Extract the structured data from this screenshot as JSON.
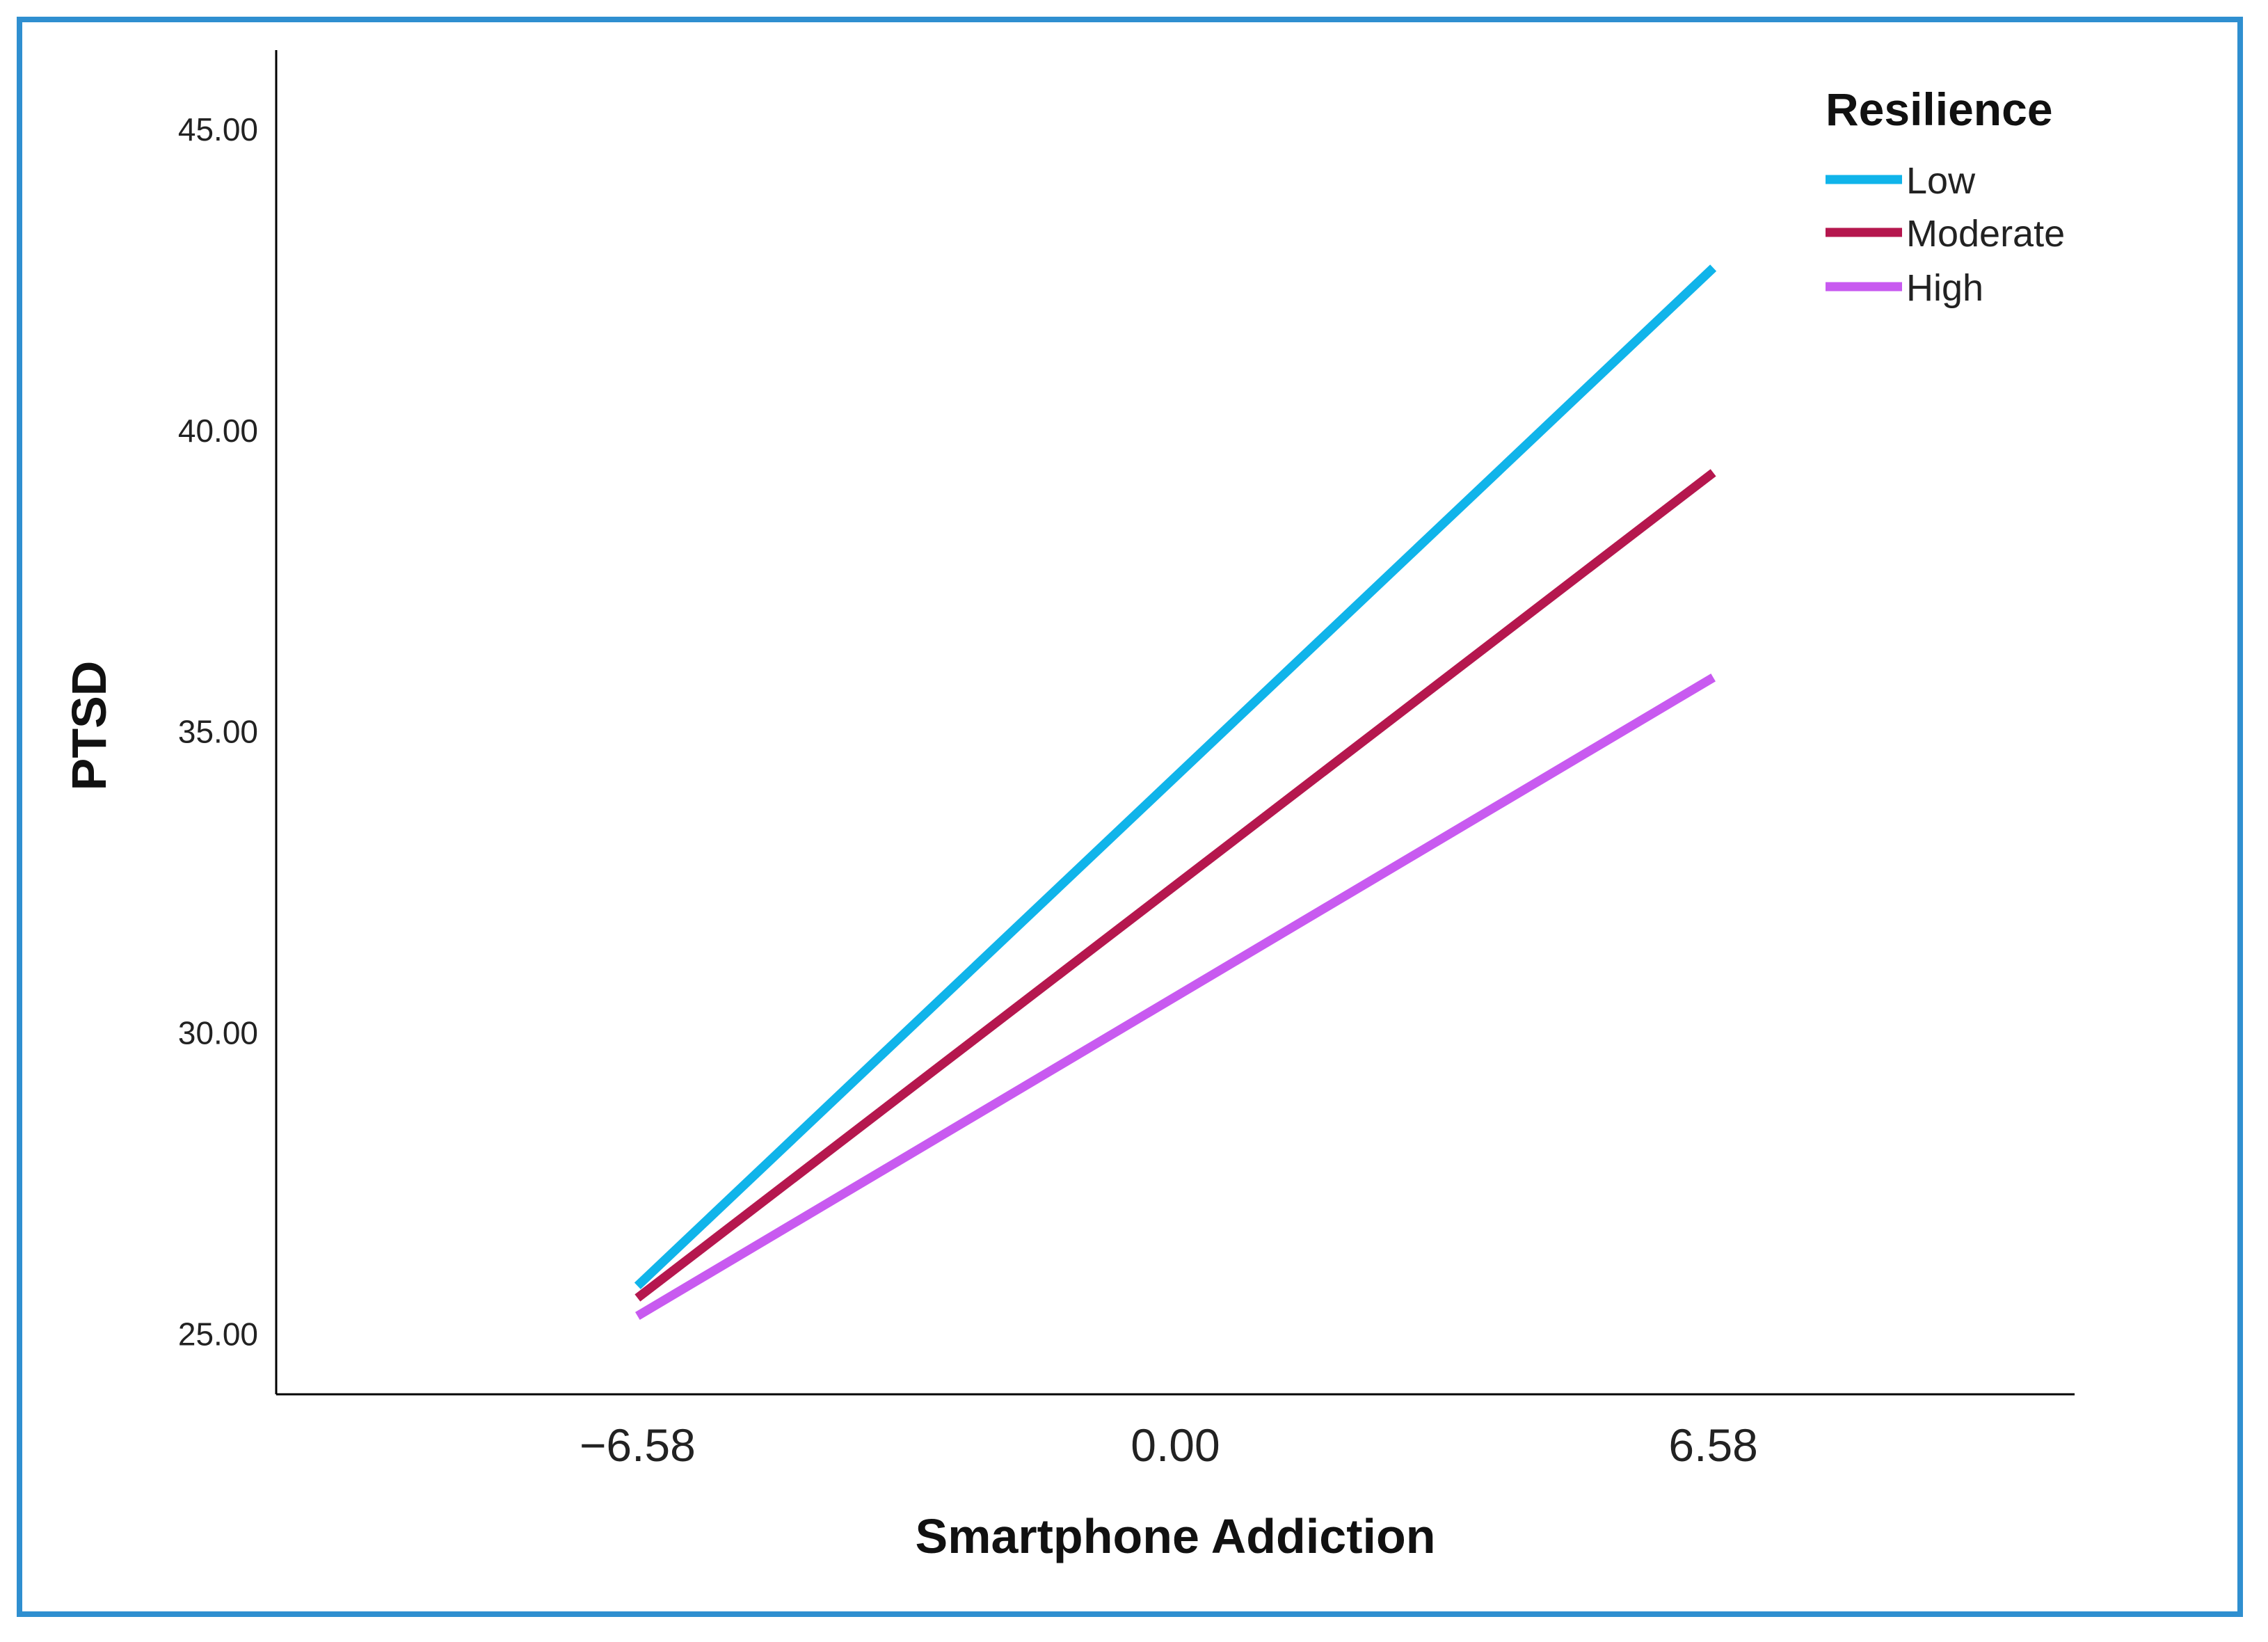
{
  "chart_data": {
    "type": "line",
    "xlabel": "Smartphone Addiction",
    "ylabel": "PTSD",
    "x_ticks": [
      "−6.58",
      "0.00",
      "6.58"
    ],
    "x_tick_values": [
      -6.58,
      0.0,
      6.58
    ],
    "xlim": [
      -11.0,
      11.0
    ],
    "y_ticks": [
      "25.00",
      "30.00",
      "35.00",
      "40.00",
      "45.00"
    ],
    "y_tick_values": [
      25,
      30,
      35,
      40,
      45
    ],
    "ylim": [
      24.0,
      46.2
    ],
    "grid": false,
    "legend": {
      "title": "Resilience",
      "position": "top-right"
    },
    "x": [
      -6.58,
      6.58
    ],
    "series": [
      {
        "name": "Low",
        "color": "#10b4ea",
        "values": [
          25.8,
          42.7
        ]
      },
      {
        "name": "Moderate",
        "color": "#b5174e",
        "values": [
          25.6,
          39.3
        ]
      },
      {
        "name": "High",
        "color": "#c85af0",
        "values": [
          25.3,
          35.9
        ]
      }
    ]
  }
}
